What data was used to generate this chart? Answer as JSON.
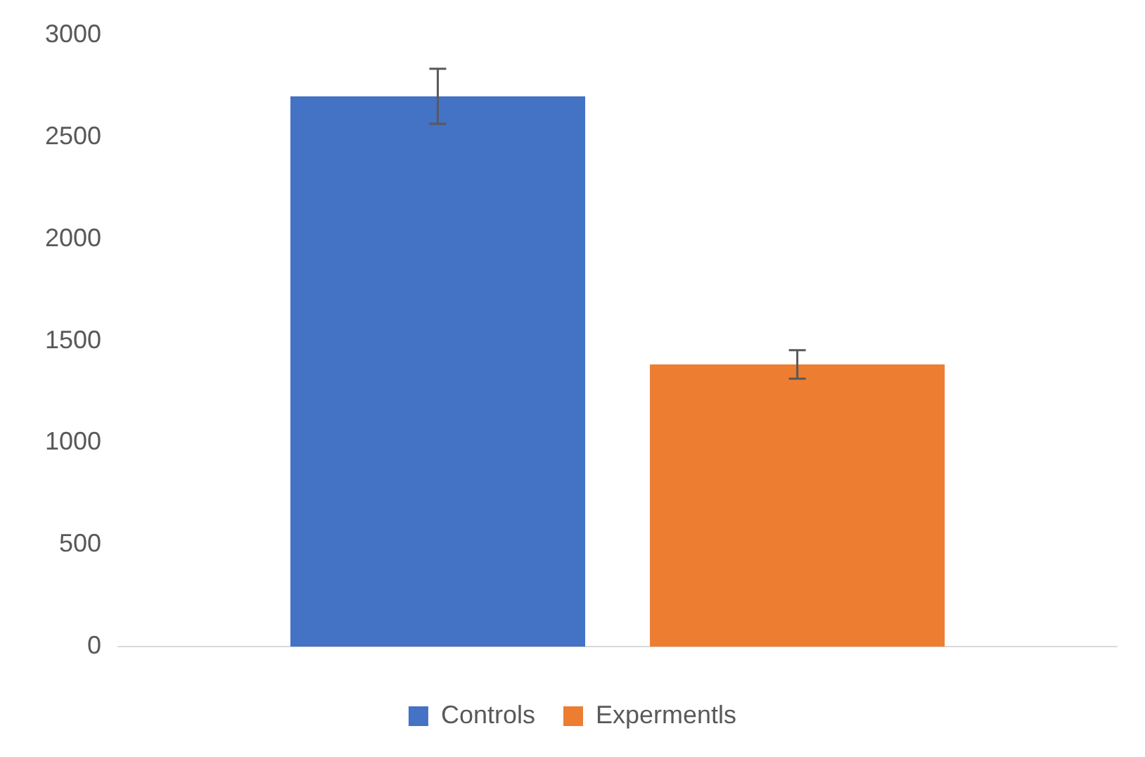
{
  "chart_data": {
    "type": "bar",
    "categories": [
      null
    ],
    "series": [
      {
        "name": "Controls",
        "color": "#4472c4",
        "values": [
          2700
        ],
        "errors": [
          135
        ]
      },
      {
        "name": "Expermentls",
        "color": "#ed7d31",
        "values": [
          1385
        ],
        "errors": [
          70
        ]
      }
    ],
    "ylim": [
      0,
      3000
    ],
    "yticks": [
      0,
      500,
      1000,
      1500,
      2000,
      2500,
      3000
    ],
    "grid": false,
    "legend": "bottom"
  }
}
